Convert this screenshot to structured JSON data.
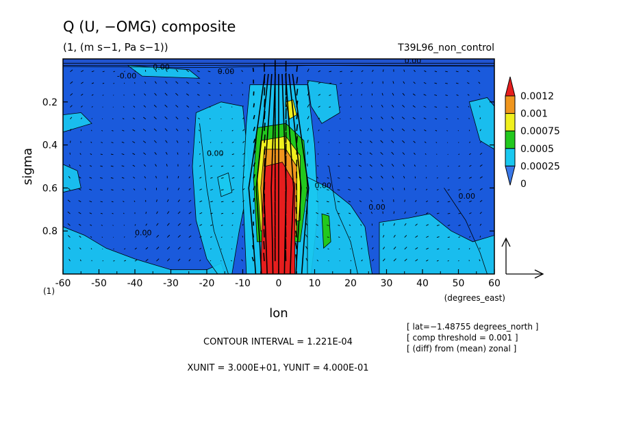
{
  "chart_data": {
    "type": "heatmap",
    "title": "Q (U, −OMG) composite",
    "subtitle": "(1, (m s−1, Pa s−1))",
    "run_label": "T39L96_non_control",
    "xlabel": "lon",
    "x_unit_label": "(degrees_east)",
    "ylabel": "sigma",
    "y_unit_marker": "(1)",
    "xlim": [
      -60,
      60
    ],
    "ylim": [
      0.0,
      1.0
    ],
    "y_inverted": true,
    "x_ticks": [
      -60,
      -50,
      -40,
      -30,
      -20,
      -10,
      0,
      10,
      20,
      30,
      40,
      50,
      60
    ],
    "x_tick_labels": [
      "-60",
      "-50",
      "-40",
      "-30",
      "-20",
      "-10",
      "0",
      "10",
      "20",
      "30",
      "40",
      "50",
      "60"
    ],
    "y_ticks": [
      0.2,
      0.4,
      0.6,
      0.8
    ],
    "y_tick_labels": [
      "0.2",
      "0.4",
      "0.6",
      "0.8"
    ],
    "color_levels": [
      {
        "label": "0",
        "color": "#3a78e8"
      },
      {
        "label": "0.00025",
        "color": "#19c8f0"
      },
      {
        "label": "0.0005",
        "color": "#22c81e"
      },
      {
        "label": "0.00075",
        "color": "#f0f01e"
      },
      {
        "label": "0.001",
        "color": "#f0961e"
      },
      {
        "label": "0.0012",
        "color": "#e61e1e"
      }
    ],
    "under_color": "#2850c8",
    "background_color": "#1a5adc",
    "contour_labels": [
      "0.00",
      "-0.00",
      "0.00",
      "0.00",
      "0.00",
      "0.00",
      "0.00",
      "0.00",
      "0.00"
    ],
    "footer": {
      "contour_interval": "CONTOUR INTERVAL = 1.221E-04",
      "units": "XUNIT = 3.000E+01, YUNIT = 4.000E-01"
    },
    "annotations": [
      "[ lat=−1.48755 degrees_north ]",
      "[ comp threshold = 0.001 ]",
      "[ (diff) from (mean) zonal ]"
    ]
  }
}
